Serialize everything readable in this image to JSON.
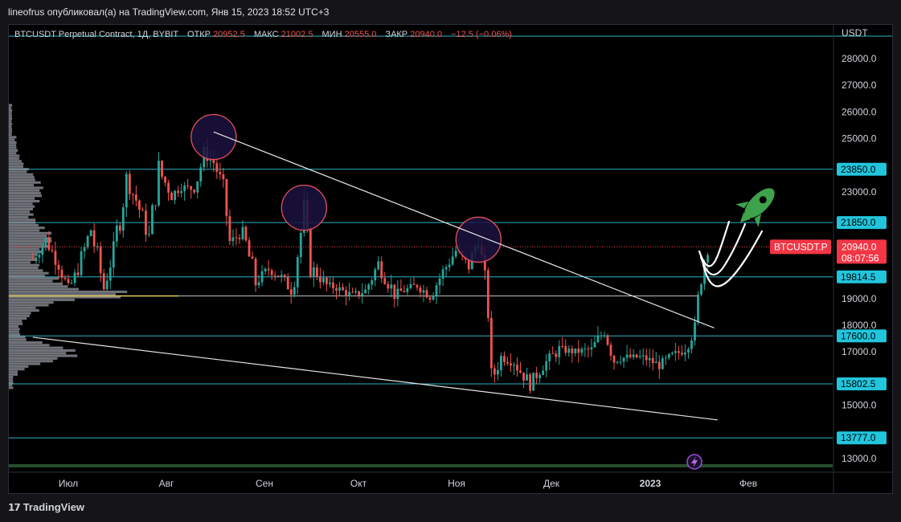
{
  "publish_line": "lineofrus опубликовал(а) на TradingView.com, Янв 15, 2023 18:52 UTC+3",
  "footer_brand": "TradingView",
  "header": {
    "symbol": "BTCUSDT Perpetual Contract, 1Д, BYBIT",
    "open_label": "ОТКР",
    "open": "20952.5",
    "high_label": "МАКС",
    "high": "21002.5",
    "low_label": "МИН",
    "low": "20555.0",
    "close_label": "ЗАКР",
    "close": "20940.0",
    "change": "−12.5 (−0.06%)"
  },
  "currency": "USDT",
  "colors": {
    "up": "#26a69a",
    "down": "#ef5350",
    "level": "#2ab4c8",
    "poc": "#e7d05a",
    "profile": "#9598a1",
    "trend": "#e6e6e6",
    "badge_cyan": "#21c5dc",
    "badge_red": "#f23645",
    "circle_fill": "#1b1240",
    "circle_stroke": "#e8505b",
    "rocket": "#3fa34d"
  },
  "chart_data": {
    "type": "candlestick",
    "title": "BTCUSDT Perpetual Contract, 1Д, BYBIT",
    "y_axis_ticks": [
      "28000.0",
      "27000.0",
      "26000.0",
      "25000.0",
      "23000.0",
      "19000.0",
      "18000.0",
      "17000.0",
      "15000.0",
      "13000.0"
    ],
    "x_axis_ticks": [
      "Июл",
      "Авг",
      "Сен",
      "Окт",
      "Ноя",
      "Дек",
      "2023",
      "Фев"
    ],
    "ylim": [
      12400,
      28500
    ],
    "horizontal_levels": [
      {
        "value": 23850.0,
        "label": "23850.0"
      },
      {
        "value": 21850.0,
        "label": "21850.0"
      },
      {
        "value": 19814.5,
        "label": "19814.5"
      },
      {
        "value": 17600.0,
        "label": "17600.0"
      },
      {
        "value": 15802.5,
        "label": "15802.5"
      },
      {
        "value": 13777.0,
        "label": "13777.0"
      }
    ],
    "last_price": {
      "symbol": "BTCUSDT.P",
      "value": "20940.0",
      "countdown": "08:07:56"
    },
    "trendlines": [
      {
        "from": [
          "2022-08-15",
          25250
        ],
        "to": [
          "2023-01-17",
          17900
        ]
      },
      {
        "from": [
          "2022-06-20",
          17550
        ],
        "to": [
          "2023-01-18",
          14450
        ]
      }
    ],
    "marked_highs": [
      {
        "date": "2022-08-15",
        "price": 25150
      },
      {
        "date": "2022-09-12",
        "price": 22500
      },
      {
        "date": "2022-11-05",
        "price": 21300
      }
    ],
    "ohlc": [
      {
        "date": "2022-06-20",
        "close": 20500
      },
      {
        "date": "2022-06-24",
        "close": 21200
      },
      {
        "date": "2022-06-28",
        "close": 20300
      },
      {
        "date": "2022-07-01",
        "close": 19300
      },
      {
        "date": "2022-07-04",
        "close": 20100
      },
      {
        "date": "2022-07-08",
        "close": 21600
      },
      {
        "date": "2022-07-12",
        "close": 19400
      },
      {
        "date": "2022-07-15",
        "close": 20800
      },
      {
        "date": "2022-07-19",
        "close": 23400
      },
      {
        "date": "2022-07-22",
        "close": 22700
      },
      {
        "date": "2022-07-26",
        "close": 21300
      },
      {
        "date": "2022-07-29",
        "close": 23800
      },
      {
        "date": "2022-08-02",
        "close": 22900
      },
      {
        "date": "2022-08-05",
        "close": 23200
      },
      {
        "date": "2022-08-09",
        "close": 23100
      },
      {
        "date": "2022-08-12",
        "close": 24400
      },
      {
        "date": "2022-08-15",
        "close": 24100
      },
      {
        "date": "2022-08-18",
        "close": 23200
      },
      {
        "date": "2022-08-20",
        "close": 21100
      },
      {
        "date": "2022-08-24",
        "close": 21500
      },
      {
        "date": "2022-08-28",
        "close": 19600
      },
      {
        "date": "2022-09-01",
        "close": 20100
      },
      {
        "date": "2022-09-05",
        "close": 19800
      },
      {
        "date": "2022-09-08",
        "close": 19300
      },
      {
        "date": "2022-09-12",
        "close": 22200
      },
      {
        "date": "2022-09-14",
        "close": 20200
      },
      {
        "date": "2022-09-19",
        "close": 19500
      },
      {
        "date": "2022-09-22",
        "close": 19400
      },
      {
        "date": "2022-09-27",
        "close": 19100
      },
      {
        "date": "2022-10-01",
        "close": 19300
      },
      {
        "date": "2022-10-05",
        "close": 20300
      },
      {
        "date": "2022-10-10",
        "close": 19200
      },
      {
        "date": "2022-10-13",
        "close": 19300
      },
      {
        "date": "2022-10-17",
        "close": 19500
      },
      {
        "date": "2022-10-21",
        "close": 19100
      },
      {
        "date": "2022-10-25",
        "close": 20000
      },
      {
        "date": "2022-10-29",
        "close": 20800
      },
      {
        "date": "2022-11-02",
        "close": 20200
      },
      {
        "date": "2022-11-05",
        "close": 21300
      },
      {
        "date": "2022-11-08",
        "close": 18600
      },
      {
        "date": "2022-11-09",
        "close": 15900
      },
      {
        "date": "2022-11-12",
        "close": 16800
      },
      {
        "date": "2022-11-16",
        "close": 16600
      },
      {
        "date": "2022-11-21",
        "close": 15800
      },
      {
        "date": "2022-11-25",
        "close": 16500
      },
      {
        "date": "2022-11-30",
        "close": 17100
      },
      {
        "date": "2022-12-05",
        "close": 17000
      },
      {
        "date": "2022-12-10",
        "close": 17100
      },
      {
        "date": "2022-12-14",
        "close": 17800
      },
      {
        "date": "2022-12-17",
        "close": 16700
      },
      {
        "date": "2022-12-21",
        "close": 16800
      },
      {
        "date": "2022-12-26",
        "close": 16800
      },
      {
        "date": "2022-12-31",
        "close": 16500
      },
      {
        "date": "2023-01-04",
        "close": 16850
      },
      {
        "date": "2023-01-08",
        "close": 17100
      },
      {
        "date": "2023-01-11",
        "close": 17900
      },
      {
        "date": "2023-01-13",
        "close": 19900
      },
      {
        "date": "2023-01-15",
        "close": 20940
      }
    ]
  }
}
